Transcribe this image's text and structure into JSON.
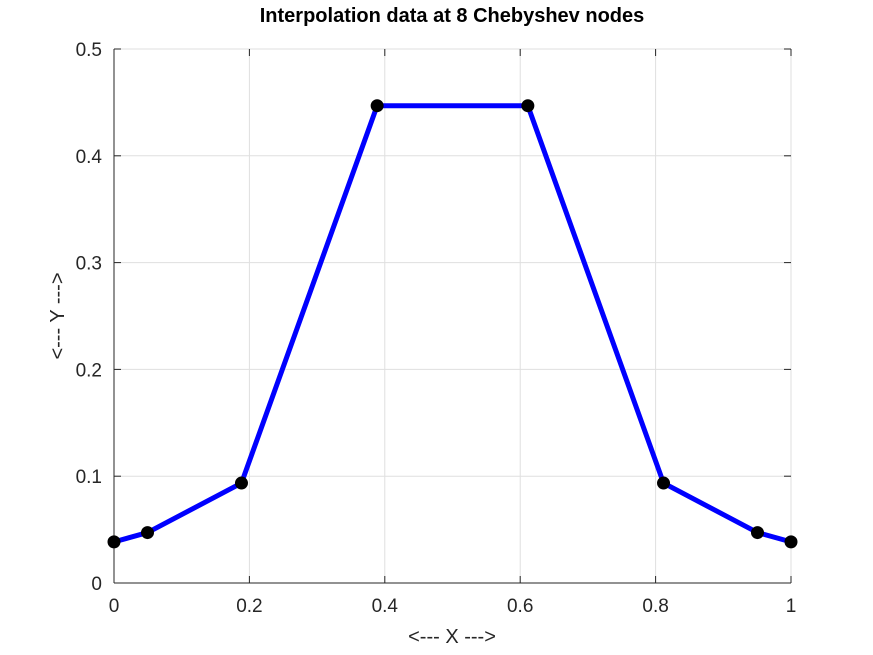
{
  "chart_data": {
    "type": "line",
    "title": "Interpolation data at 8 Chebyshev nodes",
    "xlabel": "<--- X --->",
    "ylabel": "<--- Y --->",
    "xlim": [
      0,
      1
    ],
    "ylim": [
      0,
      0.5
    ],
    "xticks": [
      "0",
      "0.2",
      "0.4",
      "0.6",
      "0.8",
      "1"
    ],
    "yticks": [
      "0",
      "0.1",
      "0.2",
      "0.3",
      "0.4",
      "0.5"
    ],
    "grid": true,
    "series": [
      {
        "x": [
          0.0,
          0.0495,
          0.1883,
          0.3887,
          0.6113,
          0.8117,
          0.9505,
          1.0
        ],
        "y": [
          0.0385,
          0.0472,
          0.0936,
          0.4469,
          0.4469,
          0.0936,
          0.0472,
          0.0385
        ],
        "line_color": "#0000ff",
        "marker_color": "#000000"
      }
    ]
  }
}
